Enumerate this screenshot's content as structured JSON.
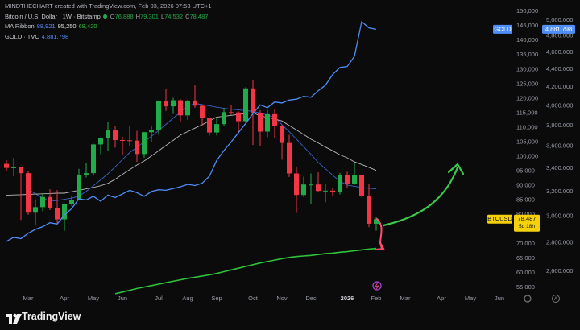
{
  "header": {
    "credit": "MINDTHECHART created with TradingView.com, Feb 03, 2026 07:53 UTC+1"
  },
  "footer": {
    "brand": "TradingView"
  },
  "chart_data": {
    "type": "candlestick",
    "legend": {
      "title": "Bitcoin / U.S. Dollar · 1W · Bitstamp",
      "ohlc": [
        {
          "key": "O",
          "text": "76,888"
        },
        {
          "key": "H",
          "text": "79,301"
        },
        {
          "key": "L",
          "text": "74,532"
        },
        {
          "key": "C",
          "text": "78,487"
        }
      ]
    },
    "categories": [
      null,
      null,
      null,
      "Mar",
      null,
      null,
      null,
      null,
      "Apr",
      null,
      null,
      null,
      "May",
      null,
      null,
      null,
      "Jun",
      null,
      null,
      null,
      null,
      "Jul",
      null,
      null,
      null,
      "Aug",
      null,
      null,
      null,
      "Sep",
      null,
      null,
      null,
      null,
      "Oct",
      null,
      null,
      null,
      "Nov",
      null,
      null,
      null,
      "Dec",
      null,
      null,
      null,
      null,
      "2026",
      null,
      null,
      null,
      "Feb",
      null,
      null,
      null,
      "Mar",
      null,
      null,
      null,
      null,
      "Apr",
      null,
      null,
      null,
      "May",
      null,
      null,
      null,
      "Jun",
      null
    ],
    "open": [
      97500,
      96100,
      96300,
      94300,
      80700,
      82600,
      86100,
      82400,
      78400,
      83700,
      85100,
      93800,
      94300,
      104200,
      106400,
      109000,
      105700,
      105600,
      105500,
      100900,
      108400,
      109200,
      119000,
      117300,
      119400,
      114200,
      119300,
      117500,
      113300,
      108300,
      111200,
      115300,
      115200,
      112200,
      123500,
      115100,
      108600,
      114600,
      110600,
      104700,
      94200,
      86800,
      90400,
      90400,
      88200,
      88300,
      87800,
      93700,
      90600,
      93600,
      86600,
      76888,
      null,
      null,
      null,
      null,
      null,
      null,
      null,
      null,
      null,
      null,
      null,
      null,
      null,
      null,
      null,
      null,
      null,
      null
    ],
    "high": [
      98800,
      99500,
      96500,
      95000,
      85300,
      87500,
      88800,
      88500,
      83900,
      86400,
      95800,
      97900,
      104400,
      106600,
      111900,
      110700,
      106800,
      110400,
      108900,
      108500,
      110500,
      119400,
      123200,
      120200,
      119800,
      119500,
      124500,
      117600,
      113500,
      113400,
      116700,
      117900,
      115600,
      123900,
      126200,
      116000,
      116000,
      116400,
      110900,
      107500,
      96600,
      93100,
      94200,
      94600,
      90600,
      89100,
      94400,
      94800,
      97900,
      93700,
      90600,
      79301,
      null,
      null,
      null,
      null,
      null,
      null,
      null,
      null,
      null,
      null,
      null,
      null,
      null,
      null,
      null,
      null,
      null,
      null
    ],
    "low": [
      94900,
      93300,
      78200,
      80000,
      76600,
      81200,
      81600,
      77100,
      74500,
      83100,
      84900,
      92800,
      93400,
      100800,
      102100,
      103100,
      100400,
      103400,
      98200,
      99600,
      105100,
      107500,
      115700,
      114700,
      112000,
      112700,
      116800,
      110700,
      107300,
      107300,
      110600,
      114400,
      108600,
      111700,
      104000,
      103500,
      106700,
      106300,
      98900,
      93000,
      80600,
      86100,
      83800,
      87700,
      84300,
      86400,
      87000,
      89300,
      90300,
      86100,
      75700,
      74532,
      null,
      null,
      null,
      null,
      null,
      null,
      null,
      null,
      null,
      null,
      null,
      null,
      null,
      null,
      null,
      null,
      null,
      null
    ],
    "close": [
      96100,
      96300,
      94300,
      80700,
      82600,
      86100,
      82400,
      78400,
      83700,
      85100,
      93800,
      94300,
      104200,
      106400,
      109000,
      105700,
      105600,
      105500,
      100900,
      108400,
      109200,
      119000,
      117300,
      119400,
      114200,
      119300,
      117500,
      113300,
      108300,
      111200,
      115300,
      115200,
      112200,
      123500,
      115100,
      108600,
      114600,
      110600,
      104700,
      94200,
      86800,
      90400,
      90400,
      88200,
      88300,
      87800,
      93700,
      90600,
      93600,
      86600,
      76900,
      78487,
      null,
      null,
      null,
      null,
      null,
      null,
      null,
      null,
      null,
      null,
      null,
      null,
      null,
      null,
      null,
      null,
      null,
      null
    ],
    "up_color": "#22ab4a",
    "down_color": "#f23645",
    "ma_ribbon": {
      "name": "MA Ribbon",
      "lines": [
        {
          "color": "#3a63c8",
          "last_label": "88,921",
          "values": [
            null,
            null,
            null,
            88800,
            87200,
            85800,
            84600,
            84900,
            85300,
            85700,
            86400,
            88000,
            90000,
            92000,
            94100,
            96500,
            99000,
            101400,
            103200,
            105100,
            107000,
            109000,
            111100,
            113200,
            115300,
            117300,
            118300,
            117900,
            117500,
            117000,
            116600,
            116300,
            116100,
            115800,
            115600,
            115000,
            114300,
            113600,
            111000,
            108600,
            106000,
            103400,
            100800,
            98000,
            95800,
            93600,
            91500,
            90200,
            89800,
            89400,
            89100,
            88921,
            null,
            null,
            null,
            null,
            null,
            null,
            null,
            null,
            null,
            null,
            null,
            null,
            null,
            null,
            null,
            null,
            null,
            null
          ]
        },
        {
          "color": "#b8b8b8",
          "last_label": "95,250",
          "values": [
            86700,
            86800,
            86900,
            87000,
            87100,
            87200,
            87300,
            87400,
            87400,
            87900,
            88400,
            88900,
            89400,
            90000,
            90800,
            92200,
            93900,
            95500,
            97100,
            98500,
            100200,
            102000,
            103800,
            105600,
            107400,
            108600,
            109800,
            111000,
            112300,
            113600,
            113900,
            114200,
            114500,
            114800,
            115100,
            114000,
            113500,
            112900,
            112300,
            110700,
            109200,
            107600,
            106000,
            104700,
            103300,
            102000,
            100600,
            99600,
            98200,
            97300,
            96300,
            95250,
            null,
            null,
            null,
            null,
            null,
            null,
            null,
            null,
            null,
            null,
            null,
            null,
            null,
            null,
            null,
            null,
            null,
            null
          ]
        },
        {
          "color": "#2fc23a",
          "last_label": "68,420",
          "values": [
            null,
            null,
            null,
            null,
            null,
            null,
            null,
            null,
            null,
            null,
            null,
            null,
            null,
            null,
            null,
            52800,
            53400,
            54000,
            54600,
            55100,
            55600,
            56100,
            56600,
            57100,
            57600,
            58100,
            58500,
            58900,
            59300,
            59800,
            60400,
            61000,
            61600,
            62200,
            62800,
            63400,
            63900,
            64400,
            64900,
            65300,
            65600,
            65800,
            66000,
            66300,
            66600,
            66800,
            67100,
            67300,
            67600,
            67900,
            68200,
            68420,
            null,
            null,
            null,
            null,
            null,
            null,
            null,
            null,
            null,
            null,
            null,
            null,
            null,
            null,
            null,
            null,
            null,
            null
          ]
        }
      ]
    },
    "gold": {
      "name": "GOLD · TVC",
      "tag": "GOLD",
      "axis": "y2",
      "color": "#4f8df7",
      "last_label": "4,881.798",
      "values": [
        2810,
        2840,
        2830,
        2870,
        2900,
        2920,
        2950,
        2940,
        3010,
        3060,
        3140,
        3130,
        3160,
        3120,
        3170,
        3150,
        3180,
        3210,
        3190,
        3160,
        3200,
        3215,
        3210,
        3225,
        3240,
        3260,
        3250,
        3270,
        3330,
        3470,
        3560,
        3640,
        3730,
        3820,
        3920,
        4010,
        3980,
        4040,
        4030,
        4060,
        4070,
        4100,
        4090,
        4160,
        4220,
        4340,
        4420,
        4430,
        4550,
        4980,
        4900,
        4881.798,
        null,
        null,
        null,
        null,
        null,
        null,
        null,
        null,
        null,
        null,
        null,
        null,
        null,
        null,
        null,
        null,
        null,
        null
      ]
    },
    "price_tag": {
      "symbol": "BTCUSD",
      "last_label": "78,487",
      "countdown": "5d 18h"
    },
    "ylim": [
      51400,
      153900
    ],
    "yticks": [
      {
        "value": 55000,
        "label": "55,000"
      },
      {
        "value": 60000,
        "label": "60,000"
      },
      {
        "value": 65000,
        "label": "65,000"
      },
      {
        "value": 70000,
        "label": "70,000"
      },
      {
        "value": 75000,
        "label": "75,000"
      },
      {
        "value": 80000,
        "label": "80,000"
      },
      {
        "value": 85000,
        "label": "85,000"
      },
      {
        "value": 90000,
        "label": "90,000"
      },
      {
        "value": 95000,
        "label": "95,000"
      },
      {
        "value": 100000,
        "label": "100,000"
      },
      {
        "value": 105000,
        "label": "105,000"
      },
      {
        "value": 110000,
        "label": "110,000"
      },
      {
        "value": 115000,
        "label": "115,000"
      },
      {
        "value": 120000,
        "label": "120,000"
      },
      {
        "value": 125000,
        "label": "125,000"
      },
      {
        "value": 130000,
        "label": "130,000"
      },
      {
        "value": 135000,
        "label": "135,000"
      },
      {
        "value": 140000,
        "label": "140,000"
      },
      {
        "value": 145000,
        "label": "145,000"
      },
      {
        "value": 150000,
        "label": "150,000"
      }
    ],
    "y2lim": [
      2426,
      5269
    ],
    "y2scale": "log",
    "y2ticks": [
      {
        "value": 2600,
        "label": "2,600.000"
      },
      {
        "value": 2800,
        "label": "2,800.000"
      },
      {
        "value": 3000,
        "label": "3,000.000"
      },
      {
        "value": 3200,
        "label": "3,200.000"
      },
      {
        "value": 3400,
        "label": "3,400.000"
      },
      {
        "value": 3600,
        "label": "3,600.000"
      },
      {
        "value": 3800,
        "label": "3,800.000"
      },
      {
        "value": 4000,
        "label": "4,000.000"
      },
      {
        "value": 4200,
        "label": "4,200.000"
      },
      {
        "value": 4400,
        "label": "4,400.000"
      },
      {
        "value": 4600,
        "label": "4,600.000"
      },
      {
        "value": 4800,
        "label": "4,800.000"
      },
      {
        "value": 5000,
        "label": "5,000.000"
      }
    ],
    "grid": false
  }
}
